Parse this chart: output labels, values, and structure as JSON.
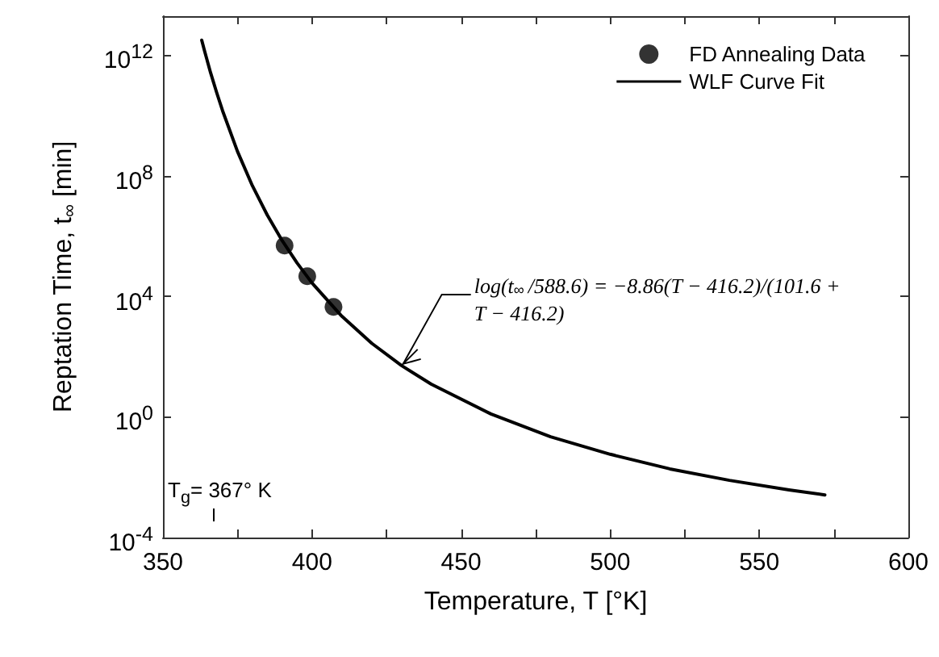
{
  "chart_data": {
    "type": "line",
    "xlabel": "Temperature, T [°K]",
    "ylabel": "Reptation Time, t$_{∞}$ [min]",
    "xlim": [
      350,
      600
    ],
    "xticks": [
      350,
      {
        "value": 375,
        "label": null
      },
      400,
      {
        "value": 425,
        "label": null
      },
      450,
      {
        "value": 475,
        "label": null
      },
      500,
      {
        "value": 525,
        "label": null
      },
      550,
      {
        "value": 575,
        "label": null
      },
      600
    ],
    "ylim": [
      0.0001,
      20000000000000.0
    ],
    "yticks": [
      {
        "value": 0.0001,
        "label": "10$^{-4}$"
      },
      {
        "value": 1,
        "label": "10$^{0}$"
      },
      {
        "value": 10000.0,
        "label": "10$^{4}$"
      },
      {
        "value": 100000000.0,
        "label": "10$^{8}$"
      },
      {
        "value": 1000000000000.0,
        "label": "10$^{12}$"
      }
    ],
    "log": "y",
    "grid": false,
    "legend": "top right",
    "series": [
      {
        "name": "FD Annealing Data",
        "type": "scatter",
        "color": "#000000",
        "marker": "circle",
        "x": [
          390.8,
          398.4,
          407.2
        ],
        "values": [
          490000.0,
          47000.0,
          4500.0
        ]
      },
      {
        "name": "WLF Curve Fit",
        "color": "#000000",
        "marker": "none",
        "line_style": "solid",
        "x": [
          363,
          364,
          366,
          368,
          370,
          375,
          380,
          385,
          390,
          395,
          400,
          410,
          420,
          430,
          440,
          460,
          480,
          500,
          520,
          540,
          560,
          572
        ],
        "values": [
          3200000000000.0,
          1350000000000.0,
          260000000000.0,
          59000000000.0,
          14500000000.0,
          650000000.0,
          47000000.0,
          5000000.0,
          710000.0,
          129000.0,
          28000.0,
          2200.0,
          280.0,
          51,
          12.3,
          1.26,
          0.22,
          0.058,
          0.019,
          0.0079,
          0.0038,
          0.0026
        ]
      }
    ],
    "annotations": [
      {
        "text": "log(t$_{∞}$/588.6) = −8.86(T − 416.2)/(101.6 + T − 416.2)",
        "x": 430,
        "y": 51
      },
      "T$_{g}$= 367° K"
    ]
  }
}
